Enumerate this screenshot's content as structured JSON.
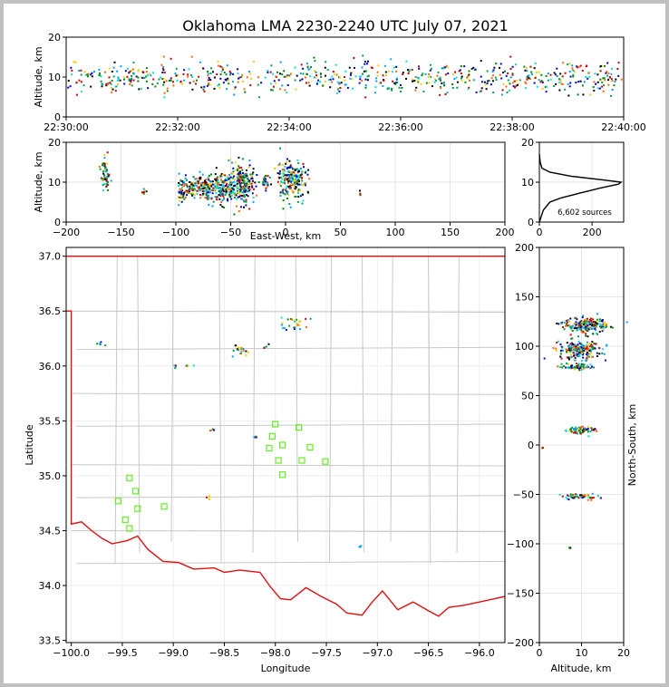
{
  "chart_data": [
    {
      "panel": "time-altitude",
      "type": "scatter",
      "title": "Oklahoma LMA 2230-2240 UTC July 07, 2021",
      "ylabel": "Altitude, km",
      "xlim": [
        "22:30:00",
        "22:40:00"
      ],
      "ylim": [
        0,
        20
      ],
      "xticks": [
        "22:30:00",
        "22:32:00",
        "22:34:00",
        "22:36:00",
        "22:38:00",
        "22:40:00"
      ],
      "yticks": [
        "0",
        "10",
        "20"
      ],
      "band": {
        "altitude_center": 10,
        "altitude_spread": 2,
        "time_coverage": "continuous"
      }
    },
    {
      "panel": "east-west-altitude",
      "type": "scatter",
      "xlabel": "East-West, km",
      "ylabel": "Altitude, km",
      "xlim": [
        -200,
        200
      ],
      "ylim": [
        0,
        20
      ],
      "xticks": [
        "−200",
        "−150",
        "−100",
        "−50",
        "0",
        "50",
        "100",
        "150",
        "200"
      ],
      "yticks": [
        "0",
        "10",
        "20"
      ],
      "clusters": [
        {
          "x": 5,
          "z": 11,
          "sx": 7,
          "sz": 2.2
        },
        {
          "x": -40,
          "z": 9.5,
          "sx": 6,
          "sz": 2.5
        },
        {
          "x": -58,
          "z": 9,
          "sx": 5,
          "sz": 2
        },
        {
          "x": -73,
          "z": 8.5,
          "sx": 4,
          "sz": 1.5
        },
        {
          "x": -85,
          "z": 8.5,
          "sx": 3,
          "sz": 1.5
        },
        {
          "x": -95,
          "z": 8.5,
          "sx": 2,
          "sz": 2
        },
        {
          "x": -18,
          "z": 10,
          "sx": 2,
          "sz": 1
        },
        {
          "x": -165,
          "z": 12,
          "sx": 2,
          "sz": 2
        },
        {
          "x": -130,
          "z": 8,
          "sx": 1,
          "sz": 0.5
        },
        {
          "x": 68,
          "z": 7,
          "sx": 0.5,
          "sz": 0.5
        }
      ]
    },
    {
      "panel": "altitude-histogram",
      "type": "line",
      "xlim": [
        0,
        320
      ],
      "ylim": [
        0,
        20
      ],
      "xticks": [
        "0",
        "200"
      ],
      "yticks": [
        "0",
        "10",
        "20"
      ],
      "annotation": "6,602 sources",
      "profile": [
        [
          0,
          0
        ],
        [
          15,
          3
        ],
        [
          40,
          5
        ],
        [
          80,
          6
        ],
        [
          150,
          7.2
        ],
        [
          230,
          8.5
        ],
        [
          300,
          9.5
        ],
        [
          310,
          10
        ],
        [
          250,
          10.5
        ],
        [
          120,
          11.5
        ],
        [
          40,
          12.5
        ],
        [
          10,
          13.5
        ],
        [
          3,
          15
        ],
        [
          0,
          17
        ]
      ]
    },
    {
      "panel": "plan-view",
      "type": "scatter",
      "xlabel": "Longitude",
      "ylabel": "Latitude",
      "xlim": [
        -100.05,
        -95.75
      ],
      "ylim": [
        33.48,
        37.08
      ],
      "xticks": [
        "−100.0",
        "−99.5",
        "−99.0",
        "−98.5",
        "−98.0",
        "−97.5",
        "−97.0",
        "−96.5",
        "−96.0"
      ],
      "yticks": [
        "33.5",
        "34.0",
        "34.5",
        "35.0",
        "35.5",
        "36.0",
        "36.5",
        "37.0"
      ],
      "clusters": [
        {
          "lon": -97.83,
          "lat": 36.39,
          "sx": 0.07,
          "sy": 0.04
        },
        {
          "lon": -98.36,
          "lat": 36.14,
          "sx": 0.06,
          "sy": 0.035
        },
        {
          "lon": -98.1,
          "lat": 36.18,
          "sx": 0.02,
          "sy": 0.015
        },
        {
          "lon": -98.85,
          "lat": 36.0,
          "sx": 0.03,
          "sy": 0.01
        },
        {
          "lon": -98.98,
          "lat": 36.01,
          "sx": 0.01,
          "sy": 0.01
        },
        {
          "lon": -99.73,
          "lat": 36.22,
          "sx": 0.02,
          "sy": 0.03
        },
        {
          "lon": -98.63,
          "lat": 35.43,
          "sx": 0.015,
          "sy": 0.01
        },
        {
          "lon": -98.65,
          "lat": 34.81,
          "sx": 0.025,
          "sy": 0.015
        },
        {
          "lon": -98.2,
          "lat": 35.36,
          "sx": 0.01,
          "sy": 0.01
        },
        {
          "lon": -97.18,
          "lat": 34.36,
          "sx": 0.005,
          "sy": 0.005
        }
      ],
      "stations": [
        [
          -98.0,
          35.47
        ],
        [
          -97.77,
          35.44
        ],
        [
          -98.03,
          35.36
        ],
        [
          -97.93,
          35.28
        ],
        [
          -98.06,
          35.25
        ],
        [
          -97.66,
          35.26
        ],
        [
          -97.97,
          35.14
        ],
        [
          -97.74,
          35.14
        ],
        [
          -97.51,
          35.13
        ],
        [
          -97.93,
          35.01
        ],
        [
          -99.43,
          34.98
        ],
        [
          -99.37,
          34.86
        ],
        [
          -99.54,
          34.77
        ],
        [
          -99.35,
          34.7
        ],
        [
          -99.09,
          34.72
        ],
        [
          -99.47,
          34.6
        ],
        [
          -99.43,
          34.52
        ]
      ]
    },
    {
      "panel": "altitude-north-south",
      "type": "scatter",
      "xlabel": "Altitude, km",
      "ylabel": "North-South, km",
      "xlim": [
        0,
        20
      ],
      "ylim": [
        -200,
        200
      ],
      "xticks": [
        "0",
        "10",
        "20"
      ],
      "yticks": [
        "−200",
        "−150",
        "−100",
        "−50",
        "0",
        "50",
        "100",
        "150",
        "200"
      ],
      "clusters": [
        {
          "z": 11,
          "y": 122,
          "sz": 2.5,
          "sy": 4
        },
        {
          "z": 9.5,
          "y": 97,
          "sz": 2.5,
          "sy": 5
        },
        {
          "z": 9,
          "y": 80,
          "sz": 2,
          "sy": 1.5
        },
        {
          "z": 9.5,
          "y": 16,
          "sz": 1.8,
          "sy": 2
        },
        {
          "z": 9.5,
          "y": -51,
          "sz": 2,
          "sy": 1.5
        },
        {
          "z": 5,
          "y": 80,
          "sz": 0.3,
          "sy": 0.5
        },
        {
          "z": 5,
          "y": 124,
          "sz": 0.5,
          "sy": 0.5
        },
        {
          "z": 7,
          "y": -103,
          "sz": 0.2,
          "sy": 0.3
        },
        {
          "z": 0.5,
          "y": -2,
          "sz": 0.1,
          "sy": 0.3
        }
      ]
    }
  ]
}
